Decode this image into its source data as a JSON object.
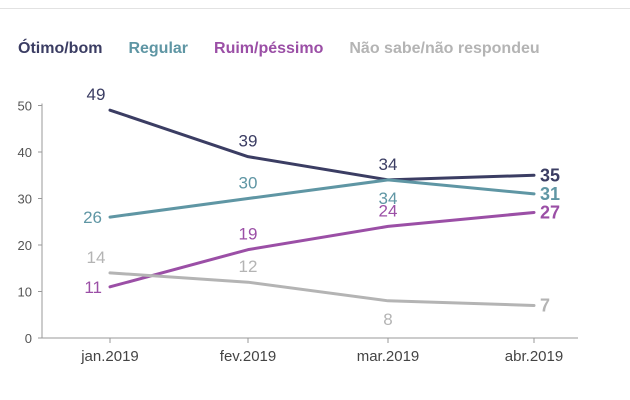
{
  "chart_data": {
    "type": "line",
    "title": "",
    "xlabel": "",
    "ylabel": "",
    "categories": [
      "jan.2019",
      "fev.2019",
      "mar.2019",
      "abr.2019"
    ],
    "ylim": [
      0,
      50
    ],
    "yticks": [
      0,
      10,
      20,
      30,
      40,
      50
    ],
    "grid": false,
    "legend_position": "top",
    "series": [
      {
        "name": "Ótimo/bom",
        "color": "#3b3d63",
        "values": [
          49,
          39,
          34,
          35
        ]
      },
      {
        "name": "Regular",
        "color": "#5f96a4",
        "values": [
          26,
          30,
          34,
          31
        ]
      },
      {
        "name": "Ruim/péssimo",
        "color": "#9b4fa6",
        "values": [
          11,
          19,
          24,
          27
        ]
      },
      {
        "name": "Não sabe/não respondeu",
        "color": "#b4b4b4",
        "values": [
          14,
          12,
          8,
          7
        ]
      }
    ]
  }
}
